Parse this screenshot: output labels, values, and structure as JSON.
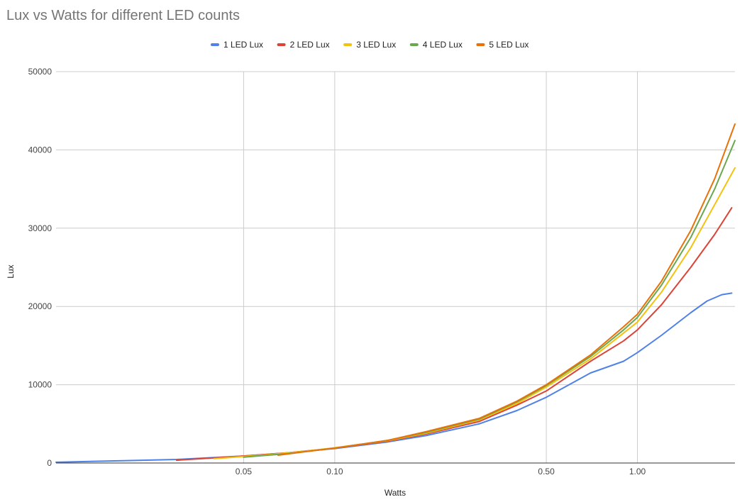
{
  "chart_data": {
    "type": "line",
    "title": "Lux vs Watts for different LED counts",
    "xlabel": "Watts",
    "ylabel": "Lux",
    "x_scale": "log",
    "xlim": [
      0.012,
      2.1
    ],
    "ylim": [
      0,
      50000
    ],
    "x_ticks": [
      {
        "value": 0.05,
        "label": "0.05"
      },
      {
        "value": 0.1,
        "label": "0.10"
      },
      {
        "value": 0.5,
        "label": "0.50"
      },
      {
        "value": 1.0,
        "label": "1.00"
      }
    ],
    "y_ticks": [
      {
        "value": 0,
        "label": "0"
      },
      {
        "value": 10000,
        "label": "10000"
      },
      {
        "value": 20000,
        "label": "20000"
      },
      {
        "value": 30000,
        "label": "30000"
      },
      {
        "value": 40000,
        "label": "40000"
      },
      {
        "value": 50000,
        "label": "50000"
      }
    ],
    "grid": true,
    "legend_position": "top",
    "series": [
      {
        "name": "1 LED Lux",
        "color": "#4f81e8",
        "points": [
          [
            0.012,
            100
          ],
          [
            0.02,
            300
          ],
          [
            0.03,
            450
          ],
          [
            0.05,
            900
          ],
          [
            0.07,
            1300
          ],
          [
            0.1,
            1850
          ],
          [
            0.15,
            2700
          ],
          [
            0.2,
            3500
          ],
          [
            0.3,
            5000
          ],
          [
            0.4,
            6700
          ],
          [
            0.5,
            8400
          ],
          [
            0.7,
            11500
          ],
          [
            0.9,
            13000
          ],
          [
            1.0,
            14100
          ],
          [
            1.2,
            16300
          ],
          [
            1.5,
            19200
          ],
          [
            1.7,
            20700
          ],
          [
            1.9,
            21500
          ],
          [
            2.05,
            21700
          ]
        ]
      },
      {
        "name": "2 LED Lux",
        "color": "#db4437",
        "points": [
          [
            0.03,
            350
          ],
          [
            0.05,
            900
          ],
          [
            0.07,
            1300
          ],
          [
            0.1,
            1900
          ],
          [
            0.15,
            2800
          ],
          [
            0.2,
            3700
          ],
          [
            0.3,
            5300
          ],
          [
            0.4,
            7400
          ],
          [
            0.5,
            9200
          ],
          [
            0.7,
            13000
          ],
          [
            0.9,
            15600
          ],
          [
            1.0,
            17000
          ],
          [
            1.2,
            20200
          ],
          [
            1.5,
            25000
          ],
          [
            1.8,
            29200
          ],
          [
            2.05,
            32600
          ]
        ]
      },
      {
        "name": "3 LED Lux",
        "color": "#f4c20d",
        "points": [
          [
            0.04,
            550
          ],
          [
            0.06,
            1050
          ],
          [
            0.08,
            1500
          ],
          [
            0.1,
            1950
          ],
          [
            0.15,
            2850
          ],
          [
            0.2,
            3800
          ],
          [
            0.3,
            5500
          ],
          [
            0.4,
            7600
          ],
          [
            0.5,
            9700
          ],
          [
            0.7,
            13300
          ],
          [
            0.9,
            16600
          ],
          [
            1.0,
            18000
          ],
          [
            1.2,
            21800
          ],
          [
            1.5,
            27500
          ],
          [
            1.8,
            33000
          ],
          [
            2.1,
            37700
          ]
        ]
      },
      {
        "name": "4 LED Lux",
        "color": "#6aa84f",
        "points": [
          [
            0.05,
            750
          ],
          [
            0.07,
            1200
          ],
          [
            0.1,
            1900
          ],
          [
            0.15,
            2900
          ],
          [
            0.2,
            3900
          ],
          [
            0.3,
            5600
          ],
          [
            0.4,
            7800
          ],
          [
            0.5,
            9900
          ],
          [
            0.7,
            13600
          ],
          [
            0.9,
            17000
          ],
          [
            1.0,
            18600
          ],
          [
            1.2,
            22700
          ],
          [
            1.5,
            28800
          ],
          [
            1.8,
            35000
          ],
          [
            2.1,
            41200
          ]
        ]
      },
      {
        "name": "5 LED Lux",
        "color": "#e8710a",
        "points": [
          [
            0.065,
            1000
          ],
          [
            0.08,
            1450
          ],
          [
            0.1,
            1900
          ],
          [
            0.15,
            2900
          ],
          [
            0.2,
            4000
          ],
          [
            0.3,
            5700
          ],
          [
            0.4,
            7900
          ],
          [
            0.5,
            10000
          ],
          [
            0.7,
            13800
          ],
          [
            0.9,
            17400
          ],
          [
            1.0,
            19000
          ],
          [
            1.2,
            23200
          ],
          [
            1.5,
            29700
          ],
          [
            1.8,
            36300
          ],
          [
            2.1,
            43300
          ]
        ]
      }
    ]
  }
}
